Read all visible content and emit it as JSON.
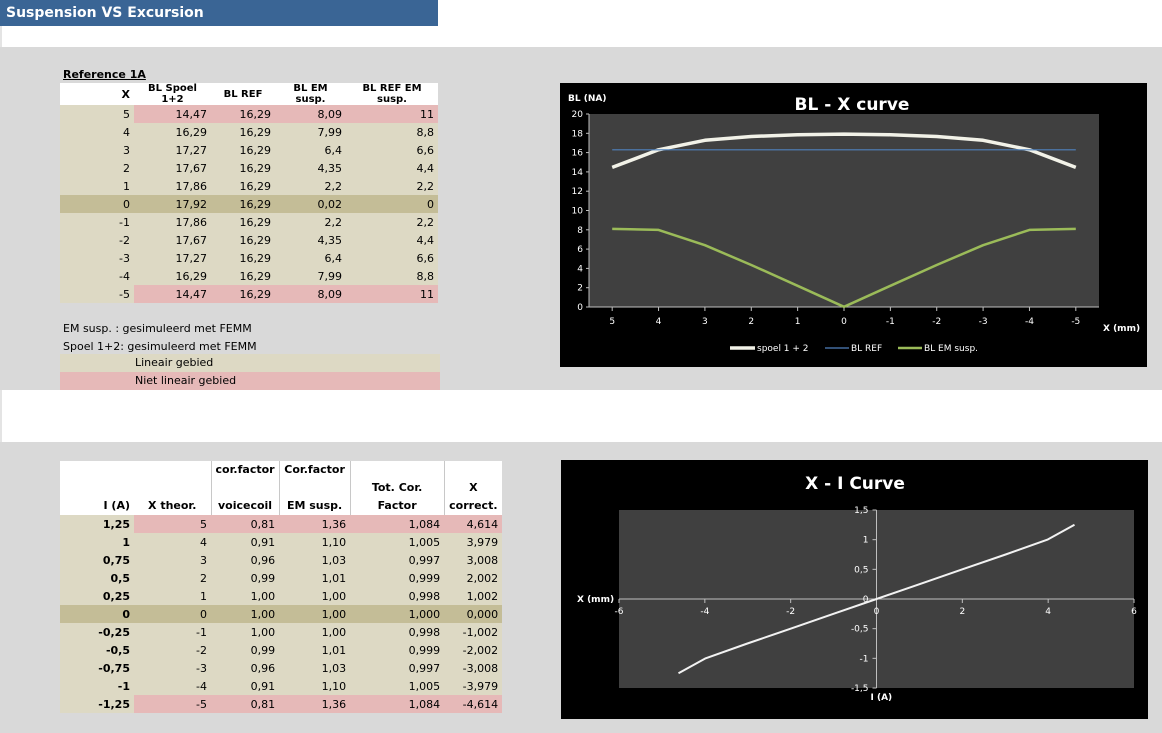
{
  "sheet": {
    "title": "Suspension VS Excursion",
    "reference_label": "Reference 1A"
  },
  "table1": {
    "headers": [
      "X",
      "BL Spoel 1+2",
      "BL REF",
      "BL EM susp.",
      "BL REF EM susp."
    ],
    "rows": [
      {
        "x": "5",
        "bl_spoel": "14,47",
        "bl_ref": "16,29",
        "bl_em": "8,09",
        "bl_ref_em": "11",
        "kind": "pink"
      },
      {
        "x": "4",
        "bl_spoel": "16,29",
        "bl_ref": "16,29",
        "bl_em": "7,99",
        "bl_ref_em": "8,8",
        "kind": "norm"
      },
      {
        "x": "3",
        "bl_spoel": "17,27",
        "bl_ref": "16,29",
        "bl_em": "6,4",
        "bl_ref_em": "6,6",
        "kind": "norm"
      },
      {
        "x": "2",
        "bl_spoel": "17,67",
        "bl_ref": "16,29",
        "bl_em": "4,35",
        "bl_ref_em": "4,4",
        "kind": "norm"
      },
      {
        "x": "1",
        "bl_spoel": "17,86",
        "bl_ref": "16,29",
        "bl_em": "2,2",
        "bl_ref_em": "2,2",
        "kind": "norm"
      },
      {
        "x": "0",
        "bl_spoel": "17,92",
        "bl_ref": "16,29",
        "bl_em": "0,02",
        "bl_ref_em": "0",
        "kind": "zero"
      },
      {
        "x": "-1",
        "bl_spoel": "17,86",
        "bl_ref": "16,29",
        "bl_em": "2,2",
        "bl_ref_em": "2,2",
        "kind": "norm"
      },
      {
        "x": "-2",
        "bl_spoel": "17,67",
        "bl_ref": "16,29",
        "bl_em": "4,35",
        "bl_ref_em": "4,4",
        "kind": "norm"
      },
      {
        "x": "-3",
        "bl_spoel": "17,27",
        "bl_ref": "16,29",
        "bl_em": "6,4",
        "bl_ref_em": "6,6",
        "kind": "norm"
      },
      {
        "x": "-4",
        "bl_spoel": "16,29",
        "bl_ref": "16,29",
        "bl_em": "7,99",
        "bl_ref_em": "8,8",
        "kind": "norm"
      },
      {
        "x": "-5",
        "bl_spoel": "14,47",
        "bl_ref": "16,29",
        "bl_em": "8,09",
        "bl_ref_em": "11",
        "kind": "pink"
      }
    ]
  },
  "notes": {
    "line1": "EM susp. : gesimuleerd met FEMM",
    "line2": "Spoel 1+2: gesimuleerd met FEMM",
    "linear": "Lineair gebied",
    "nonlinear": "Niet lineair gebied"
  },
  "table2": {
    "headers": [
      {
        "line1": "",
        "line2": "I (A)"
      },
      {
        "line1": "",
        "line2": "X theor."
      },
      {
        "line1": "cor.factor",
        "line2": "voicecoil"
      },
      {
        "line1": "Cor.factor",
        "line2": "EM susp."
      },
      {
        "line1": "",
        "line2": "Tot. Cor. Factor"
      },
      {
        "line1": "",
        "line2": "X correct."
      }
    ],
    "rows": [
      {
        "i": "1,25",
        "x": "5",
        "cv": "0,81",
        "ce": "1,36",
        "tot": "1,084",
        "xc": "4,614",
        "kind": "pink"
      },
      {
        "i": "1",
        "x": "4",
        "cv": "0,91",
        "ce": "1,10",
        "tot": "1,005",
        "xc": "3,979",
        "kind": "norm"
      },
      {
        "i": "0,75",
        "x": "3",
        "cv": "0,96",
        "ce": "1,03",
        "tot": "0,997",
        "xc": "3,008",
        "kind": "norm"
      },
      {
        "i": "0,5",
        "x": "2",
        "cv": "0,99",
        "ce": "1,01",
        "tot": "0,999",
        "xc": "2,002",
        "kind": "norm"
      },
      {
        "i": "0,25",
        "x": "1",
        "cv": "1,00",
        "ce": "1,00",
        "tot": "0,998",
        "xc": "1,002",
        "kind": "norm"
      },
      {
        "i": "0",
        "x": "0",
        "cv": "1,00",
        "ce": "1,00",
        "tot": "1,000",
        "xc": "0,000",
        "kind": "zero"
      },
      {
        "i": "-0,25",
        "x": "-1",
        "cv": "1,00",
        "ce": "1,00",
        "tot": "0,998",
        "xc": "-1,002",
        "kind": "norm"
      },
      {
        "i": "-0,5",
        "x": "-2",
        "cv": "0,99",
        "ce": "1,01",
        "tot": "0,999",
        "xc": "-2,002",
        "kind": "norm"
      },
      {
        "i": "-0,75",
        "x": "-3",
        "cv": "0,96",
        "ce": "1,03",
        "tot": "0,997",
        "xc": "-3,008",
        "kind": "norm"
      },
      {
        "i": "-1",
        "x": "-4",
        "cv": "0,91",
        "ce": "1,10",
        "tot": "1,005",
        "xc": "-3,979",
        "kind": "norm"
      },
      {
        "i": "-1,25",
        "x": "-5",
        "cv": "0,81",
        "ce": "1,36",
        "tot": "1,084",
        "xc": "-4,614",
        "kind": "pink"
      }
    ]
  },
  "colors": {
    "title_bar": "#3a6595",
    "linear": "#ddd9c4",
    "nonlinear": "#e6b9b8",
    "zero_row": "#c4bd97",
    "plot_bg": "#404040",
    "series_spoel": "#f2f2e8",
    "series_ref": "#4f81bd",
    "series_em": "#9bbb59"
  },
  "chart_data": [
    {
      "type": "line",
      "title": "BL - X curve",
      "xlabel": "X (mm)",
      "ylabel": "BL (NA)",
      "categories": [
        "5",
        "4",
        "3",
        "2",
        "1",
        "0",
        "-1",
        "-2",
        "-3",
        "-4",
        "-5"
      ],
      "ylim": [
        0,
        20
      ],
      "yticks": [
        "0",
        "2",
        "4",
        "6",
        "8",
        "10",
        "12",
        "14",
        "16",
        "18",
        "20"
      ],
      "legend": "bottom",
      "series": [
        {
          "name": "spoel 1 + 2",
          "values": [
            14.47,
            16.29,
            17.27,
            17.67,
            17.86,
            17.92,
            17.86,
            17.67,
            17.27,
            16.29,
            14.47
          ]
        },
        {
          "name": "BL REF",
          "values": [
            16.29,
            16.29,
            16.29,
            16.29,
            16.29,
            16.29,
            16.29,
            16.29,
            16.29,
            16.29,
            16.29
          ]
        },
        {
          "name": "BL EM susp.",
          "values": [
            8.09,
            7.99,
            6.4,
            4.35,
            2.2,
            0.02,
            2.2,
            4.35,
            6.4,
            7.99,
            8.09
          ]
        }
      ]
    },
    {
      "type": "scatter",
      "title": "X - I Curve",
      "xlabel": "X (mm)",
      "ylabel": "I (A)",
      "xlim": [
        -6,
        6
      ],
      "ylim": [
        -1.5,
        1.5
      ],
      "xticks": [
        "-6",
        "-4",
        "-2",
        "0",
        "2",
        "4",
        "6"
      ],
      "yticks": [
        "-1,5",
        "-1",
        "-0,5",
        "0",
        "0,5",
        "1",
        "1,5"
      ],
      "series": [
        {
          "x": [
            -4.614,
            -3.979,
            -3.008,
            -2.002,
            -1.002,
            0,
            1.002,
            2.002,
            3.008,
            3.979,
            4.614
          ],
          "y": [
            -1.25,
            -1,
            -0.75,
            -0.5,
            -0.25,
            0,
            0.25,
            0.5,
            0.75,
            1,
            1.25
          ]
        }
      ]
    }
  ]
}
